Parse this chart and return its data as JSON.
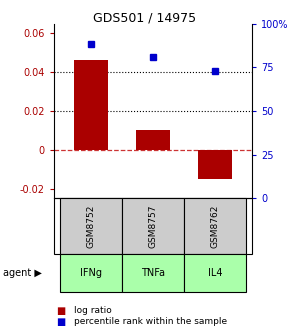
{
  "title": "GDS501 / 14975",
  "samples": [
    "GSM8752",
    "GSM8757",
    "GSM8762"
  ],
  "agents": [
    "IFNg",
    "TNFa",
    "IL4"
  ],
  "log_ratios": [
    0.046,
    0.01,
    -0.015
  ],
  "percentile_ranks": [
    0.88,
    0.81,
    0.73
  ],
  "bar_color": "#aa0000",
  "dot_color": "#0000cc",
  "ylim_left": [
    -0.025,
    0.065
  ],
  "ylim_right": [
    0.0,
    1.0
  ],
  "yticks_left": [
    -0.02,
    0.0,
    0.02,
    0.04,
    0.06
  ],
  "ytick_labels_left": [
    "-0.02",
    "0",
    "0.02",
    "0.04",
    "0.06"
  ],
  "yticks_right": [
    0.0,
    0.25,
    0.5,
    0.75,
    1.0
  ],
  "ytick_labels_right": [
    "0",
    "25",
    "50",
    "75",
    "100%"
  ],
  "hlines": [
    0.04,
    0.02
  ],
  "agent_color": "#aaffaa",
  "sample_bg_color": "#cccccc",
  "legend_log_ratio": "log ratio",
  "legend_percentile": "percentile rank within the sample",
  "bar_width": 0.55,
  "zero_line_color": "#cc3333",
  "dot_line_color": "#000000"
}
